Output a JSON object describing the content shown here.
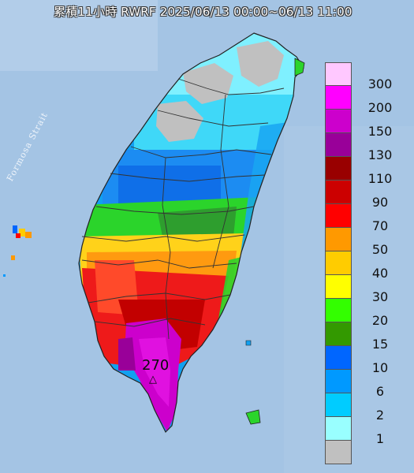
{
  "title": "累積11小時 RWRF 2025/06/13 00:00~06/13 11:00",
  "strait_label": "Formosa Strait",
  "max_value": "270",
  "max_marker": "△",
  "legend": {
    "items": [
      {
        "label": "300",
        "color": "#ffc8ff"
      },
      {
        "label": "200",
        "color": "#ff00ff"
      },
      {
        "label": "150",
        "color": "#cc00cc"
      },
      {
        "label": "130",
        "color": "#990099"
      },
      {
        "label": "110",
        "color": "#990000"
      },
      {
        "label": "90",
        "color": "#cc0000"
      },
      {
        "label": "70",
        "color": "#ff0000"
      },
      {
        "label": "50",
        "color": "#ff9900"
      },
      {
        "label": "40",
        "color": "#ffcc00"
      },
      {
        "label": "30",
        "color": "#ffff00"
      },
      {
        "label": "20",
        "color": "#33ff00"
      },
      {
        "label": "15",
        "color": "#339900"
      },
      {
        "label": "10",
        "color": "#0066ff"
      },
      {
        "label": "6",
        "color": "#0099ff"
      },
      {
        "label": "2",
        "color": "#00ccff"
      },
      {
        "label": "1",
        "color": "#99ffff"
      },
      {
        "label": "",
        "color": "#c0c0c0"
      }
    ]
  }
}
